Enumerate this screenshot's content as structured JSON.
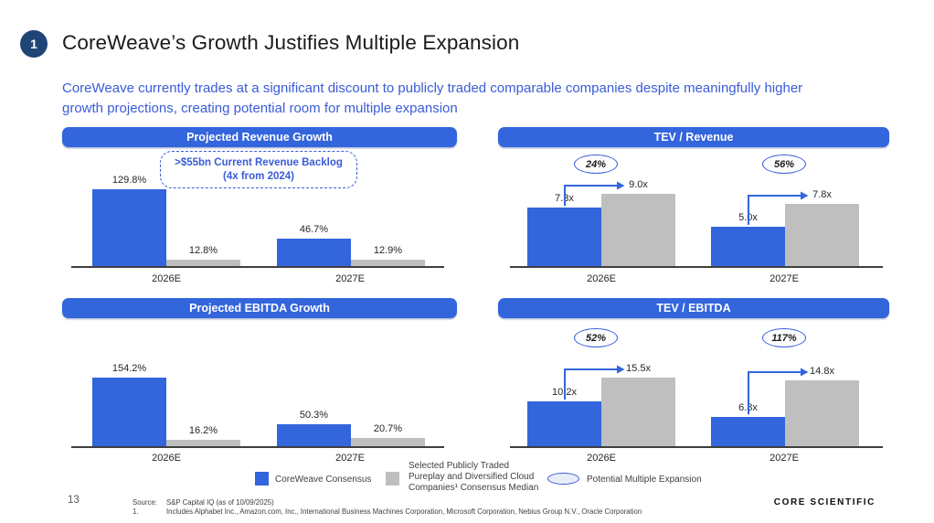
{
  "slide": {
    "badge": "1",
    "title": "CoreWeave’s Growth Justifies Multiple Expansion",
    "subtitle": "CoreWeave currently trades at a significant discount to publicly traded comparable companies despite meaningfully higher growth projections, creating potential room for multiple expansion",
    "page_number": "13",
    "logo_text": "CORE SCIENTIFIC"
  },
  "colors": {
    "coreweave_blue": "#3365DC",
    "comps_gray": "#BFBFBF",
    "badge_navy": "#1F4577",
    "subtitle_blue": "#3A5CD8",
    "axis_gray": "#3f3f3f"
  },
  "chart_data": [
    {
      "id": "projected-revenue-growth",
      "type": "bar",
      "title": "Projected Revenue Growth",
      "categories": [
        "2026E",
        "2027E"
      ],
      "series": [
        {
          "name": "CoreWeave Consensus",
          "color": "#3365DC",
          "values": [
            129.8,
            46.7
          ],
          "labels": [
            "129.8%",
            "46.7%"
          ]
        },
        {
          "name": "Selected Publicly Traded Pureplay and Diversified Cloud Companies Consensus Median",
          "color": "#BFBFBF",
          "values": [
            12.8,
            12.9
          ],
          "labels": [
            "12.8%",
            "12.9%"
          ]
        }
      ],
      "callout_line1": ">$55bn Current Revenue Backlog",
      "callout_line2": "(4x from 2024)",
      "ylim": [
        0,
        130
      ],
      "grid": false,
      "legend_position": "bottom"
    },
    {
      "id": "tev-revenue",
      "type": "bar",
      "title": "TEV / Revenue",
      "categories": [
        "2026E",
        "2027E"
      ],
      "series": [
        {
          "name": "CoreWeave Consensus",
          "color": "#3365DC",
          "values": [
            7.3,
            5.0
          ],
          "labels": [
            "7.3x",
            "5.0x"
          ]
        },
        {
          "name": "Selected Publicly Traded Pureplay and Diversified Cloud Companies Consensus Median",
          "color": "#BFBFBF",
          "values": [
            9.0,
            7.8
          ],
          "labels": [
            "9.0x",
            "7.8x"
          ]
        }
      ],
      "expansion": [
        "24%",
        "56%"
      ],
      "ylim": [
        0,
        9.5
      ],
      "grid": false,
      "legend_position": "bottom"
    },
    {
      "id": "projected-ebitda-growth",
      "type": "bar",
      "title": "Projected EBITDA Growth",
      "categories": [
        "2026E",
        "2027E"
      ],
      "series": [
        {
          "name": "CoreWeave Consensus",
          "color": "#3365DC",
          "values": [
            154.2,
            50.3
          ],
          "labels": [
            "154.2%",
            "50.3%"
          ]
        },
        {
          "name": "Selected Publicly Traded Pureplay and Diversified Cloud Companies Consensus Median",
          "color": "#BFBFBF",
          "values": [
            16.2,
            20.7
          ],
          "labels": [
            "16.2%",
            "20.7%"
          ]
        }
      ],
      "ylim": [
        0,
        155
      ],
      "grid": false,
      "legend_position": "bottom"
    },
    {
      "id": "tev-ebitda",
      "type": "bar",
      "title": "TEV / EBITDA",
      "categories": [
        "2026E",
        "2027E"
      ],
      "series": [
        {
          "name": "CoreWeave Consensus",
          "color": "#3365DC",
          "values": [
            10.2,
            6.8
          ],
          "labels": [
            "10.2x",
            "6.8x"
          ]
        },
        {
          "name": "Selected Publicly Traded Pureplay and Diversified Cloud Companies Consensus Median",
          "color": "#BFBFBF",
          "values": [
            15.5,
            14.8
          ],
          "labels": [
            "15.5x",
            "14.8x"
          ]
        }
      ],
      "expansion": [
        "52%",
        "117%"
      ],
      "ylim": [
        0,
        16
      ],
      "grid": false,
      "legend_position": "bottom"
    }
  ],
  "legend": {
    "coreweave": "CoreWeave Consensus",
    "comps_line1": "Selected Publicly Traded",
    "comps_line2": "Pureplay and Diversified Cloud",
    "comps_line3": "Companies¹ Consensus Median",
    "expansion": "Potential Multiple Expansion"
  },
  "footer": {
    "source_label": "Source:",
    "source_text": "S&P Capital IQ (as of 10/09/2025)",
    "note_label": "1.",
    "note_text": "Includes Alphabet Inc., Amazon.com, Inc., International Business Machines Corporation, Microsoft Corporation, Nebius Group N.V., Oracle Corporation"
  }
}
